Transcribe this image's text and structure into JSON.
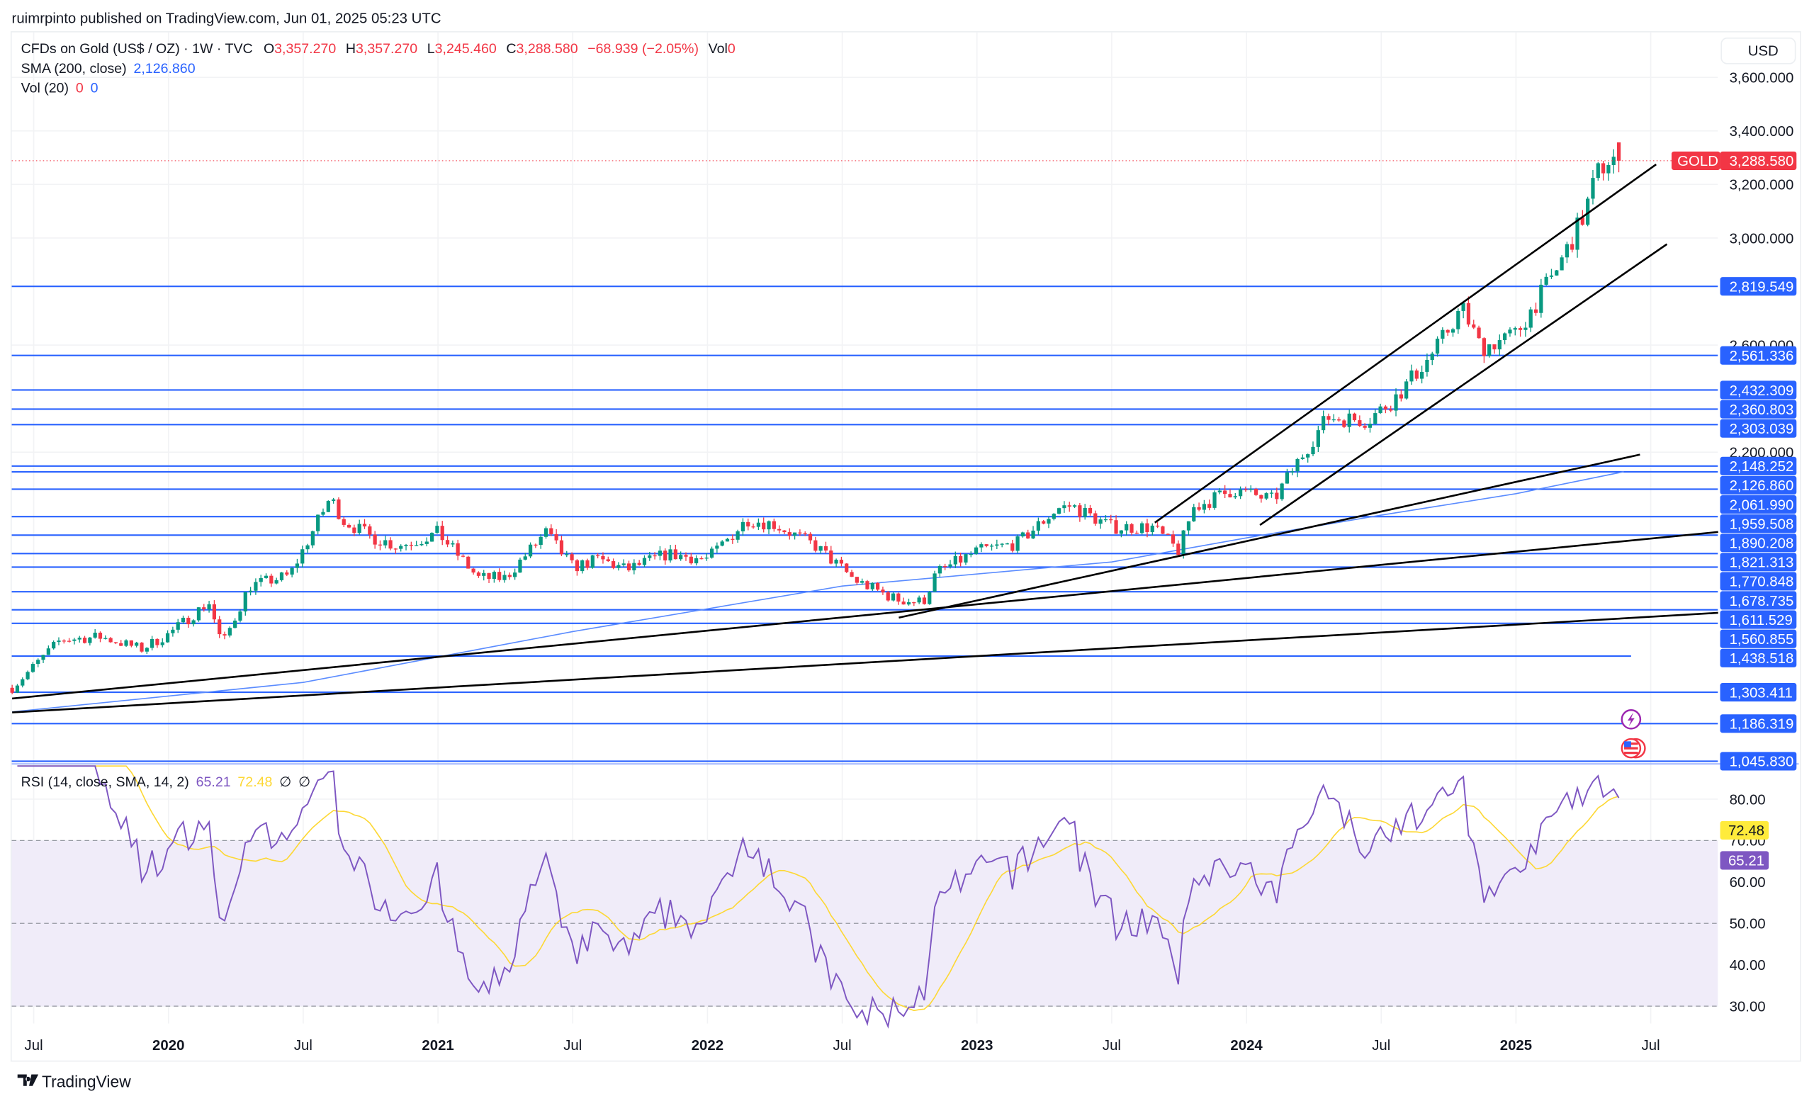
{
  "header": {
    "published": "ruimrpinto published on TradingView.com, Jun 01, 2025 05:23 UTC"
  },
  "legend": {
    "symbol": "CFDs on Gold (US$ / OZ) · 1W · TVC",
    "o_label": "O",
    "o": "3,357.270",
    "h_label": "H",
    "h": "3,357.270",
    "l_label": "L",
    "l": "3,245.460",
    "c_label": "C",
    "c": "3,288.580",
    "change": "−68.939 (−2.05%)",
    "vol_label": "Vol",
    "vol": "0",
    "sma_label": "SMA (200, close)",
    "sma_value": "2,126.860",
    "vol20_label": "Vol (20)",
    "vol20_a": "0",
    "vol20_b": "0",
    "rsi_label": "RSI (14, close, SMA, 14, 2)",
    "rsi_value": "65.21",
    "rsi_sma_value": "72.48",
    "rsi_null1": "∅",
    "rsi_null2": "∅"
  },
  "price_axis": {
    "currency": "USD",
    "ticks": [
      "3,600.000",
      "3,400.000",
      "3,200.000",
      "3,000.000",
      "2,600.000",
      "2,200.000"
    ],
    "tick_values": [
      3600,
      3400,
      3200,
      3000,
      2600,
      2200
    ],
    "symbol_tag": "GOLD",
    "last_price": "3,288.580",
    "last_value": 3288.58
  },
  "levels": [
    {
      "label": "2,819.549",
      "value": 2819.549
    },
    {
      "label": "2,561.336",
      "value": 2561.336
    },
    {
      "label": "2,432.309",
      "value": 2432.309
    },
    {
      "label": "2,360.803",
      "value": 2360.803
    },
    {
      "label": "2,303.039",
      "value": 2303.039
    },
    {
      "label": "2,148.252",
      "value": 2148.252
    },
    {
      "label": "2,126.860",
      "value": 2126.86
    },
    {
      "label": "2,061.990",
      "value": 2061.99
    },
    {
      "label": "1,959.508",
      "value": 1959.508
    },
    {
      "label": "1,890.208",
      "value": 1890.208
    },
    {
      "label": "1,821.313",
      "value": 1821.313
    },
    {
      "label": "1,770.848",
      "value": 1770.848
    },
    {
      "label": "1,678.735",
      "value": 1678.735
    },
    {
      "label": "1,611.529",
      "value": 1611.529
    },
    {
      "label": "1,560.855",
      "value": 1560.855
    },
    {
      "label": "1,438.518",
      "value": 1438.518
    },
    {
      "label": "1,303.411",
      "value": 1303.411
    },
    {
      "label": "1,186.319",
      "value": 1186.319
    },
    {
      "label": "1,045.830",
      "value": 1045.83
    }
  ],
  "rsi_axis": {
    "ticks": [
      "80.00",
      "70.00",
      "60.00",
      "50.00",
      "40.00",
      "30.00"
    ],
    "tick_values": [
      80,
      70,
      60,
      50,
      40,
      30
    ]
  },
  "time_axis": [
    {
      "label": "Jul",
      "t": 2019.5,
      "bold": false
    },
    {
      "label": "2020",
      "t": 2020.0,
      "bold": true
    },
    {
      "label": "Jul",
      "t": 2020.5,
      "bold": false
    },
    {
      "label": "2021",
      "t": 2021.0,
      "bold": true
    },
    {
      "label": "Jul",
      "t": 2021.5,
      "bold": false
    },
    {
      "label": "2022",
      "t": 2022.0,
      "bold": true
    },
    {
      "label": "Jul",
      "t": 2022.5,
      "bold": false
    },
    {
      "label": "2023",
      "t": 2023.0,
      "bold": true
    },
    {
      "label": "Jul",
      "t": 2023.5,
      "bold": false
    },
    {
      "label": "2024",
      "t": 2024.0,
      "bold": true
    },
    {
      "label": "Jul",
      "t": 2024.5,
      "bold": false
    },
    {
      "label": "2025",
      "t": 2025.0,
      "bold": true
    },
    {
      "label": "Jul",
      "t": 2025.5,
      "bold": false
    }
  ],
  "footer": {
    "brand": "TradingView"
  },
  "colors": {
    "up": "#089981",
    "down": "#f23645",
    "level": "#2962ff",
    "sma": "#5b8cff",
    "rsi": "#7e57c2",
    "rsi_sma": "#fdd835",
    "trend": "#000000"
  },
  "chart_data": {
    "type": "candlestick",
    "interval": "1W",
    "x_unit": "decimal year",
    "price_keypoints": [
      [
        2019.42,
        1320
      ],
      [
        2019.6,
        1500
      ],
      [
        2019.75,
        1510
      ],
      [
        2019.9,
        1465
      ],
      [
        2020.0,
        1520
      ],
      [
        2020.15,
        1640
      ],
      [
        2020.2,
        1480
      ],
      [
        2020.3,
        1700
      ],
      [
        2020.45,
        1740
      ],
      [
        2020.6,
        2030
      ],
      [
        2020.65,
        1945
      ],
      [
        2020.75,
        1885
      ],
      [
        2020.85,
        1850
      ],
      [
        2020.95,
        1880
      ],
      [
        2021.0,
        1900
      ],
      [
        2021.15,
        1730
      ],
      [
        2021.25,
        1730
      ],
      [
        2021.4,
        1900
      ],
      [
        2021.5,
        1770
      ],
      [
        2021.6,
        1800
      ],
      [
        2021.7,
        1760
      ],
      [
        2021.85,
        1820
      ],
      [
        2022.0,
        1800
      ],
      [
        2022.15,
        1950
      ],
      [
        2022.25,
        1930
      ],
      [
        2022.4,
        1850
      ],
      [
        2022.55,
        1720
      ],
      [
        2022.7,
        1650
      ],
      [
        2022.8,
        1640
      ],
      [
        2022.85,
        1750
      ],
      [
        2023.0,
        1830
      ],
      [
        2023.15,
        1860
      ],
      [
        2023.3,
        1990
      ],
      [
        2023.35,
        2000
      ],
      [
        2023.5,
        1920
      ],
      [
        2023.65,
        1920
      ],
      [
        2023.75,
        1830
      ],
      [
        2023.8,
        1990
      ],
      [
        2023.95,
        2060
      ],
      [
        2024.1,
        2020
      ],
      [
        2024.2,
        2180
      ],
      [
        2024.3,
        2330
      ],
      [
        2024.45,
        2320
      ],
      [
        2024.55,
        2400
      ],
      [
        2024.7,
        2580
      ],
      [
        2024.8,
        2740
      ],
      [
        2024.87,
        2590
      ],
      [
        2025.0,
        2640
      ],
      [
        2025.15,
        2880
      ],
      [
        2025.25,
        3080
      ],
      [
        2025.3,
        3240
      ],
      [
        2025.35,
        3300
      ],
      [
        2025.4,
        3290
      ]
    ],
    "last_bar": {
      "open": 3357.27,
      "high": 3357.27,
      "low": 3245.46,
      "close": 3288.58
    },
    "sma200": [
      [
        2019.42,
        1230
      ],
      [
        2020.5,
        1340
      ],
      [
        2021.5,
        1530
      ],
      [
        2022.5,
        1700
      ],
      [
        2023.5,
        1790
      ],
      [
        2024.0,
        1880
      ],
      [
        2024.5,
        1965
      ],
      [
        2025.0,
        2045
      ],
      [
        2025.4,
        2127
      ]
    ],
    "trendlines": [
      [
        [
          2023.66,
          1937
        ],
        [
          2025.52,
          3275
        ]
      ],
      [
        [
          2024.05,
          1928
        ],
        [
          2025.56,
          2977
        ]
      ],
      [
        [
          2022.71,
          1582
        ],
        [
          2025.46,
          2191
        ]
      ],
      [
        [
          2019.42,
          1280
        ],
        [
          2025.75,
          1902
        ]
      ],
      [
        [
          2019.42,
          1228
        ],
        [
          2025.75,
          1600
        ]
      ]
    ],
    "price_scale": "linear",
    "rsi_band": [
      30,
      70
    ],
    "rsi_last": 65.21,
    "rsi_sma_last": 72.48
  }
}
